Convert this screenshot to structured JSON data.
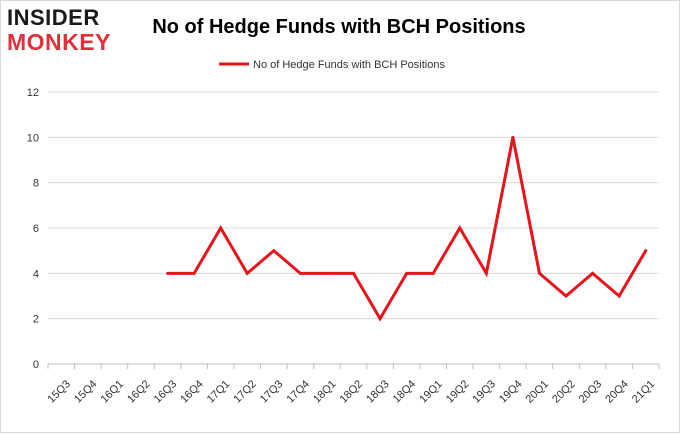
{
  "logo": {
    "line1": "INSIDER",
    "line2": "MONKEY"
  },
  "chart_data": {
    "type": "line",
    "title": "No of Hedge Funds with BCH Positions",
    "xlabel": "",
    "ylabel": "",
    "categories": [
      "15Q3",
      "15Q4",
      "16Q1",
      "16Q2",
      "16Q3",
      "16Q4",
      "17Q1",
      "17Q2",
      "17Q3",
      "17Q4",
      "18Q1",
      "18Q2",
      "18Q3",
      "18Q4",
      "19Q1",
      "19Q2",
      "19Q3",
      "19Q4",
      "20Q1",
      "20Q2",
      "20Q3",
      "20Q4",
      "21Q1"
    ],
    "series": [
      {
        "name": "No of Hedge Funds with BCH Positions",
        "color": "#e8141b",
        "values": [
          null,
          null,
          null,
          null,
          4,
          4,
          6,
          4,
          5,
          4,
          4,
          4,
          2,
          4,
          4,
          6,
          4,
          10,
          4,
          3,
          4,
          3,
          5
        ]
      }
    ],
    "ylim": [
      0,
      12
    ],
    "yticks": [
      0,
      2,
      4,
      6,
      8,
      10,
      12
    ],
    "grid": true,
    "legend": "top-center"
  }
}
